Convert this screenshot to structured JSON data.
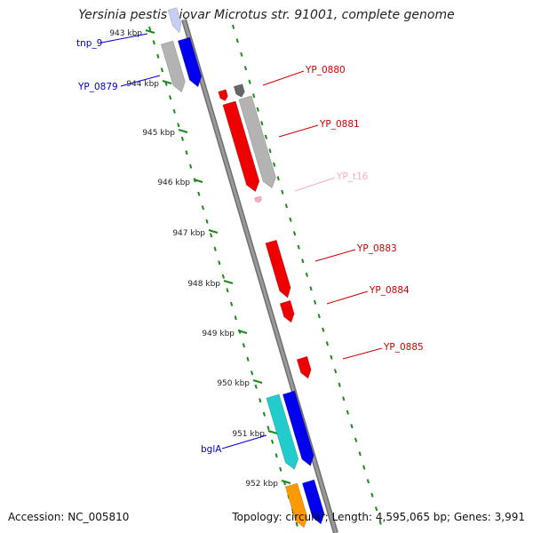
{
  "title": "Yersinia pestis biovar Microtus str. 91001, complete genome",
  "footer": {
    "accession": "Accession: NC_005810",
    "summary": "Topology: circular; Length: 4,595,065 bp; Genes: 3,991"
  },
  "colors": {
    "backbone": "#888888",
    "tick": "#1a8a1a",
    "gene_forward": "#0000ee",
    "gene_reverse_gray": "#b3b3b3",
    "gene_red": "#ee0000",
    "gene_cyan": "#22cccc",
    "gene_orange": "#ff9900",
    "gene_pink": "#ffaacc",
    "gene_lavender": "#c8cdf4",
    "label_blue": "#0000cc",
    "label_red": "#cc0000",
    "label_pink": "#ffaacc"
  },
  "ruler": {
    "unit": "kbp",
    "labels": [
      "943 kbp",
      "944 kbp",
      "945 kbp",
      "946 kbp",
      "947 kbp",
      "948 kbp",
      "949 kbp",
      "950 kbp",
      "951 kbp",
      "952 kbp"
    ]
  },
  "genes": [
    {
      "name": "tnp_9",
      "label_color": "label_blue"
    },
    {
      "name": "YP_0879",
      "label_color": "label_blue"
    },
    {
      "name": "YP_0880",
      "label_color": "label_red"
    },
    {
      "name": "YP_0881",
      "label_color": "label_red"
    },
    {
      "name": "YP_t16",
      "label_color": "label_pink"
    },
    {
      "name": "YP_0883",
      "label_color": "label_red"
    },
    {
      "name": "YP_0884",
      "label_color": "label_red"
    },
    {
      "name": "YP_0885",
      "label_color": "label_red"
    },
    {
      "name": "bglA",
      "label_color": "label_blue"
    }
  ]
}
